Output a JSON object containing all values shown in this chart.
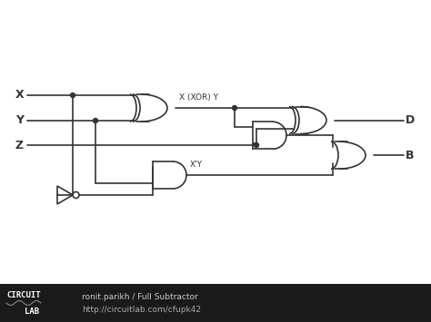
{
  "bg_color": "#ffffff",
  "line_color": "#333333",
  "lw": 1.2,
  "footer_bg": "#1a1a1a",
  "footer_text1": "ronit.parikh / Full Subtractor",
  "footer_text2": "http://circuitlab.com/cfupk42",
  "label_X": "X",
  "label_Y": "Y",
  "label_Z": "Z",
  "label_D": "D",
  "label_B": "B",
  "label_XY": "X (XOR) Y",
  "label_XpY": "X'Y",
  "figw": 4.74,
  "figh": 3.55,
  "dpi": 100
}
